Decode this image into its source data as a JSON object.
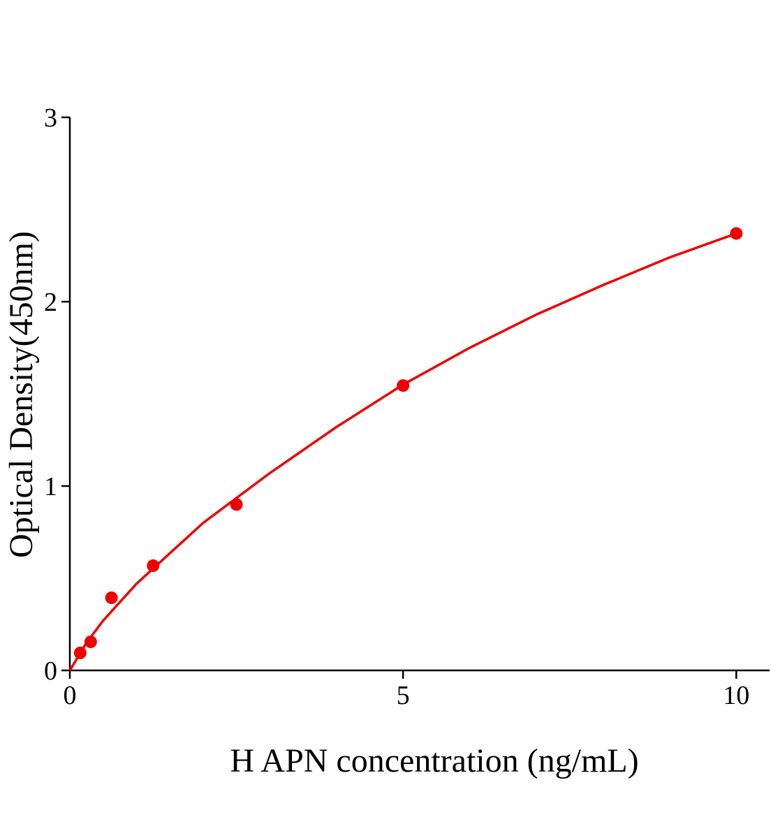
{
  "chart_data": {
    "type": "scatter",
    "x_label": "H APN concentration (ng/mL)",
    "y_label": "Optical Density(450nm)",
    "series": [
      {
        "x": [
          0.156,
          0.3125,
          0.625,
          1.25,
          2.5,
          5,
          10
        ],
        "values": [
          0.095,
          0.155,
          0.394,
          0.568,
          0.9,
          1.545,
          2.37
        ],
        "color": "#ee0000"
      }
    ],
    "fit": {
      "x": [
        0,
        0.25,
        0.5,
        1,
        2,
        3,
        4,
        5,
        6,
        7,
        8,
        9,
        10
      ],
      "values": [
        0,
        0.15,
        0.27,
        0.47,
        0.8,
        1.07,
        1.32,
        1.55,
        1.75,
        1.93,
        2.09,
        2.24,
        2.37
      ],
      "color": "#ee0000"
    },
    "xlim": [
      0,
      10.5
    ],
    "ylim": [
      0,
      3
    ],
    "xticks": [
      0,
      5,
      10
    ],
    "yticks": [
      0,
      1,
      2,
      3
    ]
  }
}
